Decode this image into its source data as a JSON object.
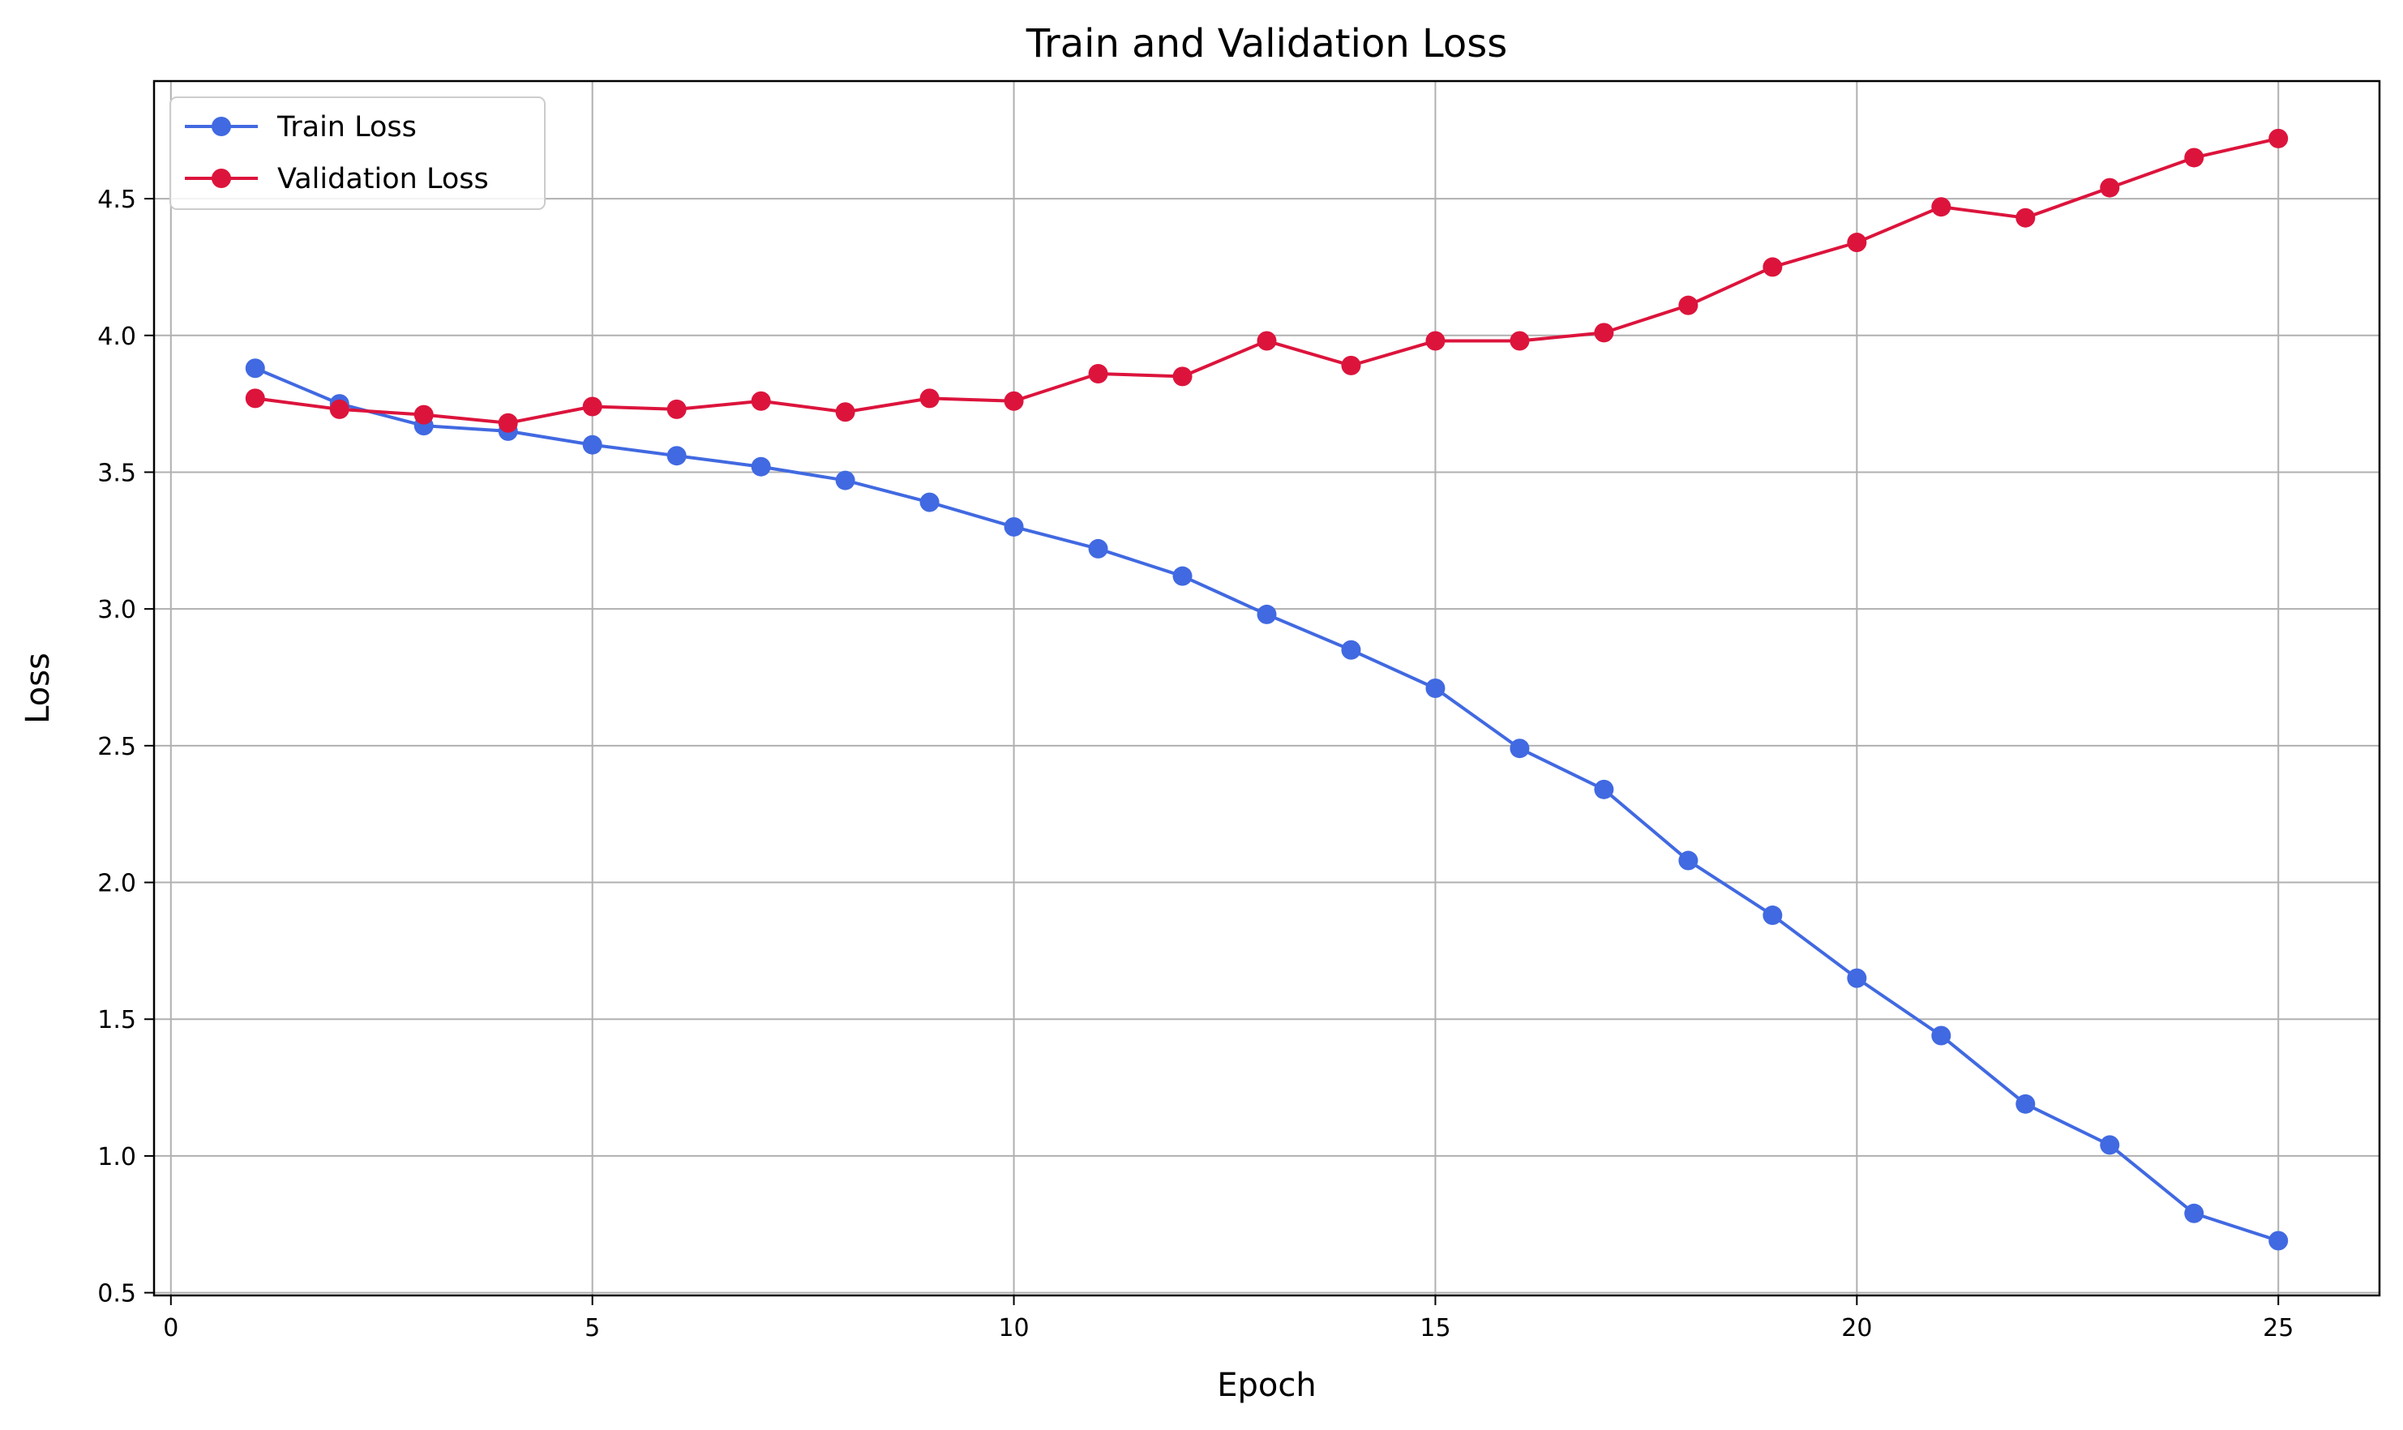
{
  "chart_data": {
    "type": "line",
    "title": "Train and Validation Loss",
    "xlabel": "Epoch",
    "ylabel": "Loss",
    "xlim": [
      -0.2,
      26.2
    ],
    "ylim": [
      0.49,
      4.93
    ],
    "xticks": [
      0,
      5,
      10,
      15,
      20,
      25
    ],
    "xtick_labels": [
      "0",
      "5",
      "10",
      "15",
      "20",
      "25"
    ],
    "yticks": [
      0.5,
      1.0,
      1.5,
      2.0,
      2.5,
      3.0,
      3.5,
      4.0,
      4.5
    ],
    "ytick_labels": [
      "0.5",
      "1.0",
      "1.5",
      "2.0",
      "2.5",
      "3.0",
      "3.5",
      "4.0",
      "4.5"
    ],
    "grid": true,
    "legend_position": "upper-left",
    "x": [
      1,
      2,
      3,
      4,
      5,
      6,
      7,
      8,
      9,
      10,
      11,
      12,
      13,
      14,
      15,
      16,
      17,
      18,
      19,
      20,
      21,
      22,
      23,
      24,
      25
    ],
    "series": [
      {
        "name": "Train Loss",
        "color": "#4169e1",
        "marker": "circle",
        "values": [
          3.88,
          3.75,
          3.67,
          3.65,
          3.6,
          3.56,
          3.52,
          3.47,
          3.39,
          3.3,
          3.22,
          3.12,
          2.98,
          2.85,
          2.71,
          2.49,
          2.34,
          2.08,
          1.88,
          1.65,
          1.44,
          1.19,
          1.04,
          0.79,
          0.69
        ]
      },
      {
        "name": "Validation Loss",
        "color": "#dc143c",
        "marker": "circle",
        "values": [
          3.77,
          3.73,
          3.71,
          3.68,
          3.74,
          3.73,
          3.76,
          3.72,
          3.77,
          3.76,
          3.86,
          3.85,
          3.98,
          3.89,
          3.98,
          3.98,
          4.01,
          4.11,
          4.25,
          4.34,
          4.47,
          4.43,
          4.54,
          4.65,
          4.72
        ]
      }
    ]
  }
}
